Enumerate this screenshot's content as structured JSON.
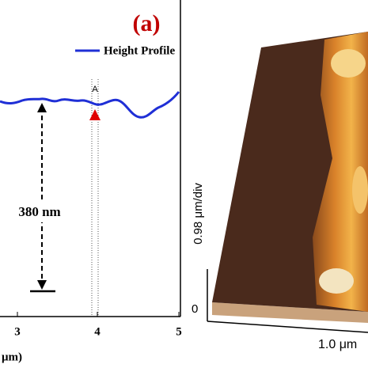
{
  "figure": {
    "panel_label": "(a)",
    "legend": "Height Profile",
    "marker_label": "A",
    "height_annotation": "380 nm",
    "x_tick_labels": [
      "3",
      "4",
      "5"
    ],
    "x_axis_label": "μm)",
    "afm": {
      "z_label": "0.98 μm/div",
      "z_origin": "0",
      "x_label": "1.0 μm"
    }
  }
}
